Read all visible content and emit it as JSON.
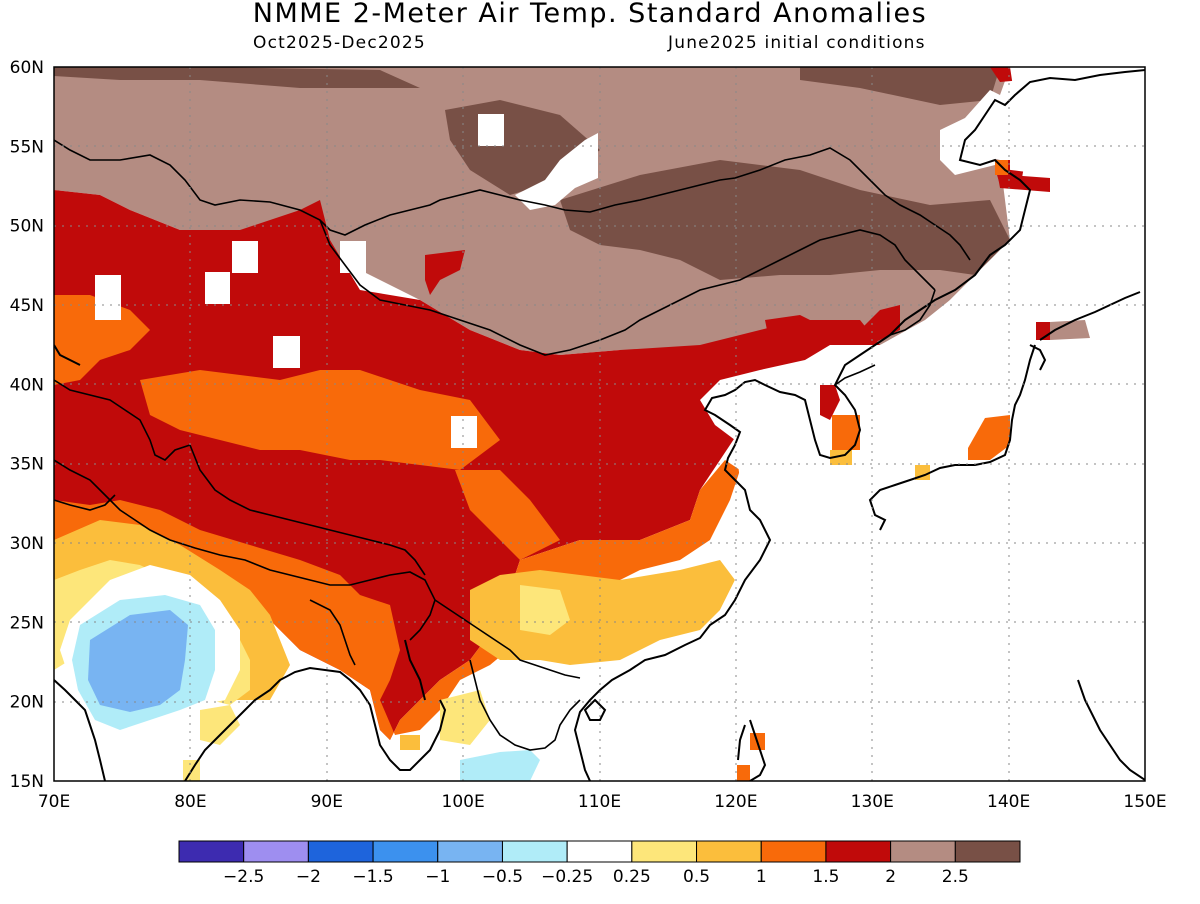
{
  "header": {
    "title": "NMME 2-Meter Air Temp. Standard Anomalies",
    "period": "Oct2025-Dec2025",
    "init": "June2025 initial conditions"
  },
  "axes": {
    "lon_ticks": [
      "70E",
      "80E",
      "90E",
      "100E",
      "110E",
      "120E",
      "130E",
      "140E",
      "150E"
    ],
    "lat_ticks": [
      "60N",
      "55N",
      "50N",
      "45N",
      "40N",
      "35N",
      "30N",
      "25N",
      "20N",
      "15N"
    ]
  },
  "extent": {
    "lon": [
      70,
      150
    ],
    "lat": [
      15,
      60
    ]
  },
  "colorbar": {
    "colors": [
      "#3d2bb0",
      "#9e8ef0",
      "#1e64dc",
      "#3c91ee",
      "#78b4f2",
      "#b0ecf8",
      "#ffffff",
      "#fde67a",
      "#fbbe3c",
      "#f86a0a",
      "#c00a0a",
      "#b48c82",
      "#785046"
    ],
    "labels": [
      "-2.5",
      "-2",
      "-1.5",
      "-1",
      "-0.5",
      "-0.25",
      "0.25",
      "0.5",
      "1",
      "1.5",
      "2",
      "2.5"
    ]
  }
}
